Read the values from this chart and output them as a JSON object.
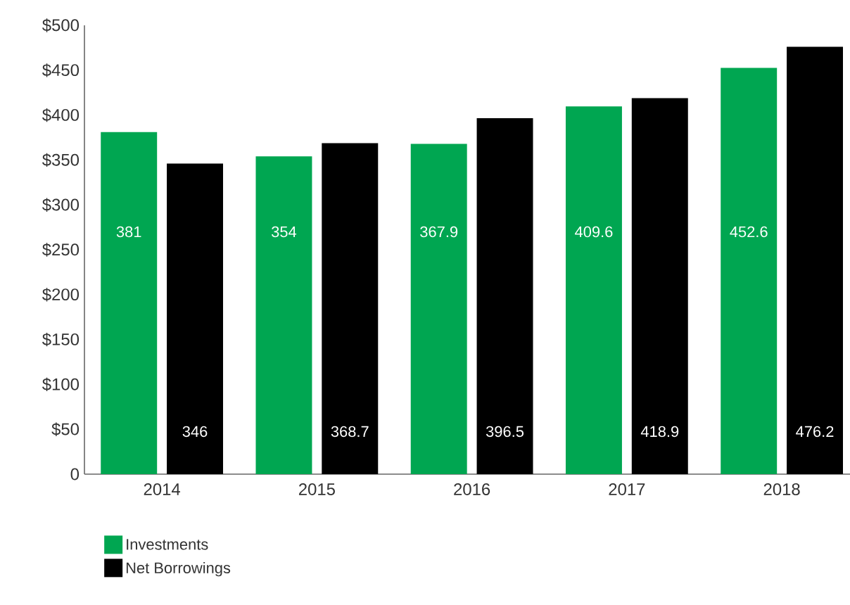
{
  "chart_data": {
    "type": "bar",
    "categories": [
      "2014",
      "2015",
      "2016",
      "2017",
      "2018"
    ],
    "series": [
      {
        "name": "Investments",
        "color": "#00a651",
        "values": [
          381,
          354,
          367.9,
          409.6,
          452.6
        ]
      },
      {
        "name": "Net Borrowings",
        "color": "#000000",
        "values": [
          346,
          368.7,
          396.5,
          418.9,
          476.2
        ]
      }
    ],
    "ylim": [
      0,
      500
    ],
    "yticks": [
      0,
      {
        "value": 50,
        "label": "$50"
      },
      {
        "value": 100,
        "label": "$100"
      },
      {
        "value": 150,
        "label": "$150"
      },
      {
        "value": 200,
        "label": "$200"
      },
      {
        "value": 250,
        "label": "$250"
      },
      {
        "value": 300,
        "label": "$300"
      },
      {
        "value": 350,
        "label": "$350"
      },
      {
        "value": 400,
        "label": "$400"
      },
      {
        "value": 450,
        "label": "$450"
      },
      {
        "value": 500,
        "label": "$500"
      }
    ],
    "data_labels": true,
    "grid": false,
    "legend": "bottom left"
  }
}
